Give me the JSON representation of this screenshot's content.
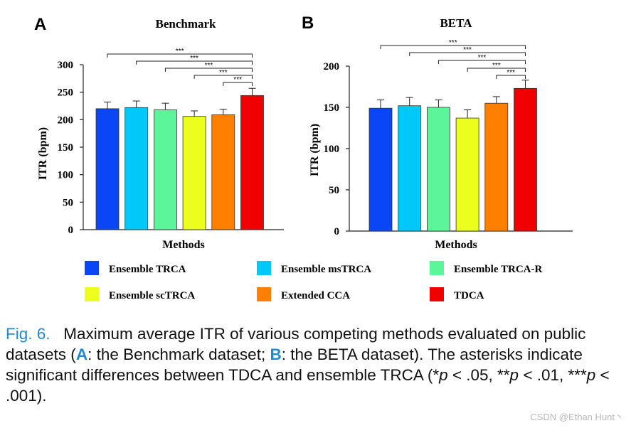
{
  "figure": {
    "legend": [
      {
        "label": "Ensemble TRCA",
        "color": "#0a46f5"
      },
      {
        "label": "Ensemble msTRCA",
        "color": "#00c8f8"
      },
      {
        "label": "Ensemble TRCA-R",
        "color": "#5cf59a"
      },
      {
        "label": "Ensemble scTRCA",
        "color": "#ecff1c"
      },
      {
        "label": "Extended CCA",
        "color": "#ff7f00"
      },
      {
        "label": "TDCA",
        "color": "#f00000"
      }
    ]
  },
  "chart_data": [
    {
      "type": "bar",
      "panel": "A",
      "title": "Benchmark",
      "xlabel": "Methods",
      "ylabel": "ITR (bpm)",
      "ylim": [
        0,
        300
      ],
      "yticks": [
        0,
        50,
        100,
        150,
        200,
        250,
        300
      ],
      "categories": [
        "Ensemble TRCA",
        "Ensemble msTRCA",
        "Ensemble TRCA-R",
        "Ensemble scTRCA",
        "Extended CCA",
        "TDCA"
      ],
      "values": [
        220,
        222,
        218,
        206,
        209,
        244
      ],
      "errors": [
        12,
        12,
        12,
        10,
        10,
        13
      ],
      "significance_label": "***",
      "significance": [
        {
          "from": "Ensemble TRCA",
          "to": "TDCA",
          "label": "***"
        },
        {
          "from": "Ensemble msTRCA",
          "to": "TDCA",
          "label": "***"
        },
        {
          "from": "Ensemble TRCA-R",
          "to": "TDCA",
          "label": "***"
        },
        {
          "from": "Ensemble scTRCA",
          "to": "TDCA",
          "label": "***"
        },
        {
          "from": "Extended CCA",
          "to": "TDCA",
          "label": "***"
        }
      ]
    },
    {
      "type": "bar",
      "panel": "B",
      "title": "BETA",
      "xlabel": "Methods",
      "ylabel": "ITR (bpm)",
      "ylim": [
        0,
        200
      ],
      "yticks": [
        0,
        50,
        100,
        150,
        200
      ],
      "categories": [
        "Ensemble TRCA",
        "Ensemble msTRCA",
        "Ensemble TRCA-R",
        "Ensemble scTRCA",
        "Extended CCA",
        "TDCA"
      ],
      "values": [
        149,
        152,
        150,
        137,
        155,
        173
      ],
      "errors": [
        10,
        10,
        9,
        10,
        8,
        10
      ],
      "significance_label": "***",
      "significance": [
        {
          "from": "Ensemble TRCA",
          "to": "TDCA",
          "label": "***"
        },
        {
          "from": "Ensemble msTRCA",
          "to": "TDCA",
          "label": "***"
        },
        {
          "from": "Ensemble TRCA-R",
          "to": "TDCA",
          "label": "***"
        },
        {
          "from": "Ensemble scTRCA",
          "to": "TDCA",
          "label": "***"
        },
        {
          "from": "Extended CCA",
          "to": "TDCA",
          "label": "***"
        }
      ]
    }
  ],
  "caption": {
    "lead": "Fig. 6.",
    "t1": "Maximum average ITR of various competing methods evaluated on public datasets (",
    "keyA": "A",
    "t2": ": the Benchmark dataset; ",
    "keyB": "B",
    "t3": ": the BETA dataset). The asterisks indicate significant differences between TDCA and ensemble TRCA (*",
    "p1": "p",
    "t4": " < .05, **",
    "p2": "p",
    "t5": " < .01, ***",
    "p3": "p",
    "t6": " < .001)."
  },
  "watermark": "CSDN @Ethan Hunt丶"
}
